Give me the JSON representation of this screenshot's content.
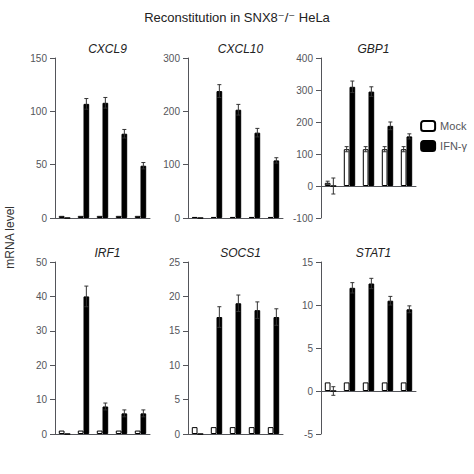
{
  "title": "Reconstitution in SNX8⁻/⁻ HeLa",
  "ylabel": "mRNA level",
  "legend": "right",
  "chart_data": [
    {
      "type": "bar",
      "title": "CXCL9",
      "categories": [
        null,
        null,
        null,
        null,
        null
      ],
      "series": [
        {
          "name": "Mock",
          "color": "white",
          "values": [
            2,
            2,
            2,
            2,
            2
          ],
          "errors": [
            0,
            0,
            0,
            0,
            0
          ]
        },
        {
          "name": "IFN-γ",
          "color": "black",
          "values": [
            0,
            107,
            108,
            79,
            49
          ],
          "errors": [
            0,
            5,
            5,
            4,
            3
          ]
        }
      ],
      "ylim": [
        0,
        150
      ],
      "yticks": [
        0,
        50,
        100,
        150
      ],
      "grid": false,
      "tick_labels": "y"
    },
    {
      "type": "bar",
      "title": "CXCL10",
      "categories": [
        null,
        null,
        null,
        null,
        null
      ],
      "series": [
        {
          "name": "Mock",
          "color": "white",
          "values": [
            2,
            2,
            2,
            2,
            2
          ],
          "errors": [
            0,
            0,
            0,
            0,
            0
          ]
        },
        {
          "name": "IFN-γ",
          "color": "black",
          "values": [
            0,
            238,
            203,
            160,
            108
          ],
          "errors": [
            0,
            12,
            10,
            8,
            5
          ]
        }
      ],
      "ylim": [
        0,
        300
      ],
      "yticks": [
        0,
        100,
        200,
        300
      ],
      "grid": false,
      "tick_labels": "y"
    },
    {
      "type": "bar",
      "title": "GBP1",
      "categories": [
        null,
        null,
        null,
        null,
        null
      ],
      "series": [
        {
          "name": "Mock",
          "color": "white",
          "values": [
            10,
            115,
            115,
            115,
            115
          ],
          "errors": [
            5,
            8,
            8,
            8,
            8
          ]
        },
        {
          "name": "IFN-γ",
          "color": "black",
          "values": [
            0,
            310,
            295,
            188,
            155
          ],
          "errors": [
            25,
            18,
            15,
            12,
            8
          ]
        }
      ],
      "ylim": [
        -100,
        400
      ],
      "yticks": [
        -100,
        0,
        100,
        200,
        300,
        400
      ],
      "grid": false,
      "tick_labels": "y"
    },
    {
      "type": "bar",
      "title": "IRF1",
      "categories": [
        null,
        null,
        null,
        null,
        null
      ],
      "series": [
        {
          "name": "Mock",
          "color": "white",
          "values": [
            1,
            1,
            1,
            1,
            1
          ],
          "errors": [
            0,
            0,
            0,
            0,
            0
          ]
        },
        {
          "name": "IFN-γ",
          "color": "black",
          "values": [
            0,
            40,
            8,
            6,
            6
          ],
          "errors": [
            0,
            3,
            1,
            1,
            1
          ]
        }
      ],
      "ylim": [
        0,
        50
      ],
      "yticks": [
        0,
        10,
        20,
        30,
        40,
        50
      ],
      "grid": false,
      "tick_labels": "y"
    },
    {
      "type": "bar",
      "title": "SOCS1",
      "categories": [
        null,
        null,
        null,
        null,
        null
      ],
      "series": [
        {
          "name": "Mock",
          "color": "white",
          "values": [
            1,
            1,
            1,
            1,
            1
          ],
          "errors": [
            0,
            0,
            0,
            0,
            0
          ]
        },
        {
          "name": "IFN-γ",
          "color": "black",
          "values": [
            0,
            17,
            19,
            18,
            17
          ],
          "errors": [
            0,
            1.5,
            1.2,
            1.2,
            1.2
          ]
        }
      ],
      "ylim": [
        0,
        25
      ],
      "yticks": [
        0,
        5,
        10,
        15,
        20,
        25
      ],
      "grid": false,
      "tick_labels": "y"
    },
    {
      "type": "bar",
      "title": "STAT1",
      "categories": [
        null,
        null,
        null,
        null,
        null
      ],
      "series": [
        {
          "name": "Mock",
          "color": "white",
          "values": [
            1,
            1,
            1,
            1,
            1
          ],
          "errors": [
            0,
            0,
            0,
            0,
            0
          ]
        },
        {
          "name": "IFN-γ",
          "color": "black",
          "values": [
            0,
            12,
            12.5,
            10.5,
            9.5
          ],
          "errors": [
            0.5,
            0.6,
            0.6,
            0.5,
            0.4
          ]
        }
      ],
      "ylim": [
        -5,
        15
      ],
      "yticks": [
        -5,
        0,
        5,
        10,
        15
      ],
      "grid": false,
      "tick_labels": "y"
    }
  ]
}
